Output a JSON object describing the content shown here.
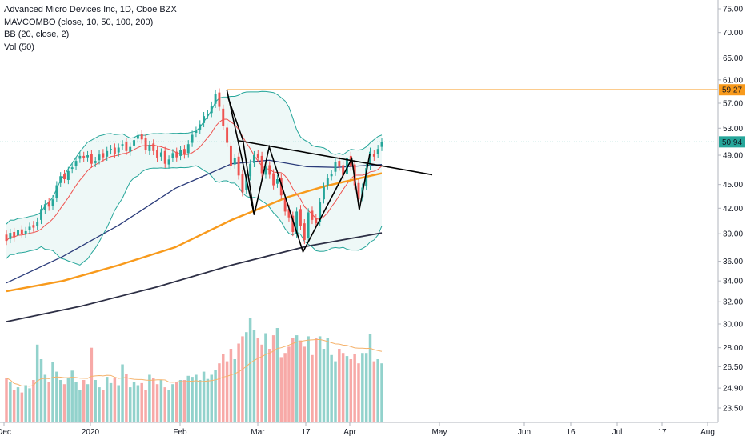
{
  "legend": {
    "title": "Advanced Micro Devices Inc, 1D, Cboe BZX",
    "line2": "MAVCOMBO (close, 10, 50, 100, 200)",
    "line3": "BB (20, close, 2)",
    "line4": "Vol (50)"
  },
  "chart_data": {
    "type": "candlestick",
    "y_scale": "log",
    "price_axis_ticks": [
      "75.00",
      "70.00",
      "65.00",
      "61.00",
      "57.00",
      "53.00",
      "49.00",
      "45.00",
      "42.00",
      "39.00",
      "36.00",
      "34.00",
      "32.00",
      "30.00",
      "28.00",
      "26.50",
      "24.90",
      "23.50"
    ],
    "time_axis_labels": [
      {
        "label": "Dec",
        "date": "2019-12"
      },
      {
        "label": "2020",
        "date": "2020-01"
      },
      {
        "label": "Feb",
        "date": "2020-02"
      },
      {
        "label": "Mar",
        "date": "2020-03"
      },
      {
        "label": "17",
        "date": "2020-03-17"
      },
      {
        "label": "Apr",
        "date": "2020-04"
      },
      {
        "label": "May",
        "date": "2020-05"
      },
      {
        "label": "Jun",
        "date": "2020-06"
      },
      {
        "label": "16",
        "date": "2020-06-16"
      },
      {
        "label": "Jul",
        "date": "2020-07"
      },
      {
        "label": "17",
        "date": "2020-07-17"
      },
      {
        "label": "Aug",
        "date": "2020-08"
      }
    ],
    "price_tags": [
      {
        "value": "59.27",
        "color": "#f89a1c"
      },
      {
        "value": "50.94",
        "color": "#26a69a"
      }
    ],
    "closes": [
      38.2,
      39.1,
      38.6,
      39.4,
      39.0,
      39.3,
      39.8,
      39.7,
      40.4,
      41.9,
      42.5,
      42.2,
      43.1,
      44.9,
      46.1,
      45.7,
      46.8,
      47.3,
      48.2,
      48.9,
      48.6,
      49.0,
      47.8,
      48.2,
      49.1,
      48.7,
      49.6,
      49.9,
      49.2,
      50.1,
      50.6,
      49.6,
      50.2,
      51.2,
      51.9,
      51.3,
      49.8,
      50.5,
      49.6,
      48.6,
      49.4,
      47.8,
      48.4,
      49.3,
      48.7,
      49.7,
      49.1,
      50.6,
      52.0,
      52.6,
      53.6,
      54.9,
      55.2,
      56.6,
      58.6,
      56.4,
      53.4,
      50.8,
      47.5,
      48.6,
      46.2,
      44.0,
      45.9,
      47.8,
      49.0,
      48.6,
      46.5,
      47.4,
      46.3,
      44.9,
      45.7,
      43.6,
      41.6,
      40.9,
      39.2,
      41.6,
      39.9,
      38.3,
      41.5,
      40.6,
      40.2,
      42.8,
      44.7,
      45.8,
      46.4,
      48.0,
      47.4,
      46.2,
      48.6,
      47.4,
      44.9,
      43.1,
      44.6,
      47.2,
      49.5,
      48.8,
      49.9,
      50.94
    ],
    "opens": [
      38.9,
      38.4,
      39.2,
      38.8,
      39.5,
      39.0,
      39.4,
      40.0,
      39.9,
      40.6,
      41.8,
      42.8,
      42.3,
      43.3,
      45.2,
      46.4,
      45.6,
      47.1,
      47.5,
      48.5,
      48.9,
      48.7,
      49.2,
      47.9,
      48.3,
      49.3,
      48.8,
      49.7,
      50.1,
      49.4,
      50.4,
      50.9,
      49.5,
      50.4,
      51.4,
      52.1,
      51.5,
      49.6,
      50.7,
      49.8,
      48.8,
      49.6,
      47.7,
      48.6,
      49.5,
      48.9,
      49.9,
      49.3,
      50.8,
      52.3,
      52.8,
      53.8,
      55.1,
      55.4,
      56.9,
      58.8,
      56.1,
      53.1,
      50.4,
      47.7,
      48.8,
      46.4,
      44.3,
      46.1,
      47.9,
      49.2,
      48.9,
      46.3,
      47.6,
      46.5,
      45.1,
      45.9,
      43.2,
      41.9,
      41.1,
      39.0,
      41.9,
      40.2,
      38.5,
      41.7,
      40.8,
      40.4,
      43.1,
      44.9,
      46.1,
      46.7,
      48.2,
      47.6,
      46.4,
      48.9,
      47.7,
      45.2,
      43.4,
      44.8,
      47.5,
      49.2,
      49.2,
      50.2
    ],
    "volume_axis": "overlay"
  }
}
